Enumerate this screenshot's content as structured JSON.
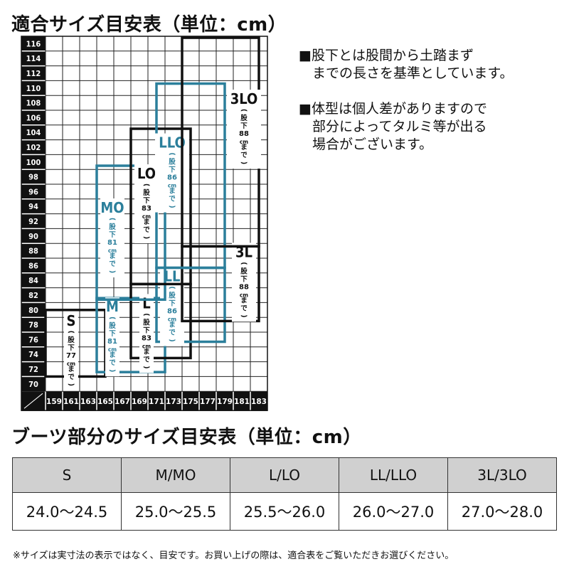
{
  "title_fit": "適合サイズ目安表（単位：cm）",
  "title_boots": "ブーツ部分のサイズ目安表（単位：cm）",
  "colors": {
    "black": "#111111",
    "teal": "#2b7f9b",
    "header_gray": "#d0d0d0"
  },
  "chart_data": {
    "type": "range-box",
    "x_ticks": [
      159,
      161,
      163,
      165,
      167,
      169,
      171,
      173,
      175,
      177,
      179,
      181,
      183
    ],
    "y_ticks": [
      116,
      114,
      112,
      110,
      108,
      106,
      104,
      102,
      100,
      98,
      96,
      94,
      92,
      90,
      88,
      86,
      84,
      82,
      80,
      78,
      76,
      74,
      72,
      70
    ],
    "xlim": [
      158,
      184
    ],
    "ylim": [
      69,
      117
    ],
    "grid": true,
    "boxes": [
      {
        "name": "S",
        "note": "股下77cmまで",
        "inseam": "77",
        "x": [
          158,
          165
        ],
        "y": [
          71,
          80
        ],
        "color": "black"
      },
      {
        "name": "M",
        "note": "股下81cmまで",
        "inseam": "81",
        "x": [
          164,
          172
        ],
        "y": [
          71.6,
          81.6
        ],
        "color": "teal"
      },
      {
        "name": "L",
        "note": "股下83cmまで",
        "inseam": "83",
        "x": [
          168,
          175
        ],
        "y": [
          73.5,
          83.5
        ],
        "color": "black"
      },
      {
        "name": "LL",
        "note": "股下86cmまで",
        "inseam": "86",
        "x": [
          171,
          179
        ],
        "y": [
          75.7,
          85.7
        ],
        "color": "teal"
      },
      {
        "name": "3L",
        "note": "股下88cmまで",
        "inseam": "88",
        "x": [
          174,
          183
        ],
        "y": [
          78.5,
          88.6
        ],
        "color": "black"
      },
      {
        "name": "MO",
        "note": "股下81cmまで",
        "inseam": "81",
        "x": [
          164,
          172
        ],
        "y": [
          81.4,
          99.5
        ],
        "color": "teal"
      },
      {
        "name": "LO",
        "note": "股下83cmまで",
        "inseam": "83",
        "x": [
          168,
          175
        ],
        "y": [
          83.5,
          104.5
        ],
        "color": "black"
      },
      {
        "name": "LLO",
        "note": "股下86cmまで",
        "inseam": "86",
        "x": [
          171,
          179
        ],
        "y": [
          85.7,
          110.6
        ],
        "color": "teal"
      },
      {
        "name": "3LO",
        "note": "股下88cmまで",
        "inseam": "88",
        "x": [
          174,
          183
        ],
        "y": [
          88.6,
          116.8
        ],
        "color": "black"
      }
    ]
  },
  "notes": [
    {
      "line1": "■股下とは股間から土踏まず",
      "line2": "までの長さを基準としています。"
    },
    {
      "line1": "■体型は個人差がありますので",
      "line2": "部分によってタルミ等が出る",
      "line3": "場合がございます。"
    }
  ],
  "boots_table": {
    "headers": [
      "S",
      "M/MO",
      "L/LO",
      "LL/LLO",
      "3L/3LO"
    ],
    "values": [
      "24.0～24.5",
      "25.0～25.5",
      "25.5～26.0",
      "26.0～27.0",
      "27.0～28.0"
    ]
  },
  "footnote": "※サイズは実寸法の表示ではなく、目安です。お買い上げの際は、適合表をご覧いただきお選びください。"
}
